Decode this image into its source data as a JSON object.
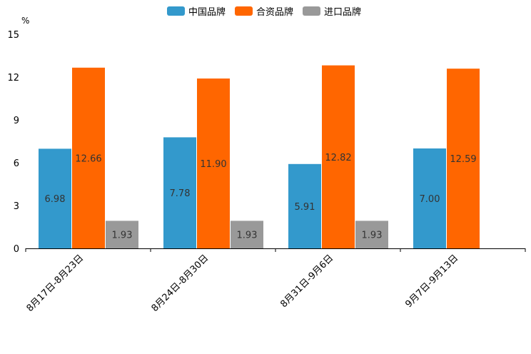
{
  "chart_data": {
    "type": "bar",
    "ylabel": "%",
    "ylim": [
      0,
      15
    ],
    "yticks": [
      0,
      3,
      6,
      9,
      12,
      15
    ],
    "categories": [
      "8月17日-8月23日",
      "8月24日-8月30日",
      "8月31日-9月6日",
      "9月7日-9月13日"
    ],
    "series": [
      {
        "name": "中国品牌",
        "color": "#3399cc",
        "values": [
          6.98,
          7.78,
          5.91,
          7.0
        ],
        "labels": [
          "6.98",
          "7.78",
          "5.91",
          "7.00"
        ]
      },
      {
        "name": "合资品牌",
        "color": "#ff6600",
        "values": [
          12.66,
          11.9,
          12.82,
          12.59
        ],
        "labels": [
          "12.66",
          "11.90",
          "12.82",
          "12.59"
        ]
      },
      {
        "name": "进口品牌",
        "color": "#999999",
        "values": [
          1.93,
          1.93,
          1.93,
          null
        ],
        "labels": [
          "1.93",
          "1.93",
          "1.93",
          null
        ]
      }
    ],
    "legend_position": "top-center"
  }
}
